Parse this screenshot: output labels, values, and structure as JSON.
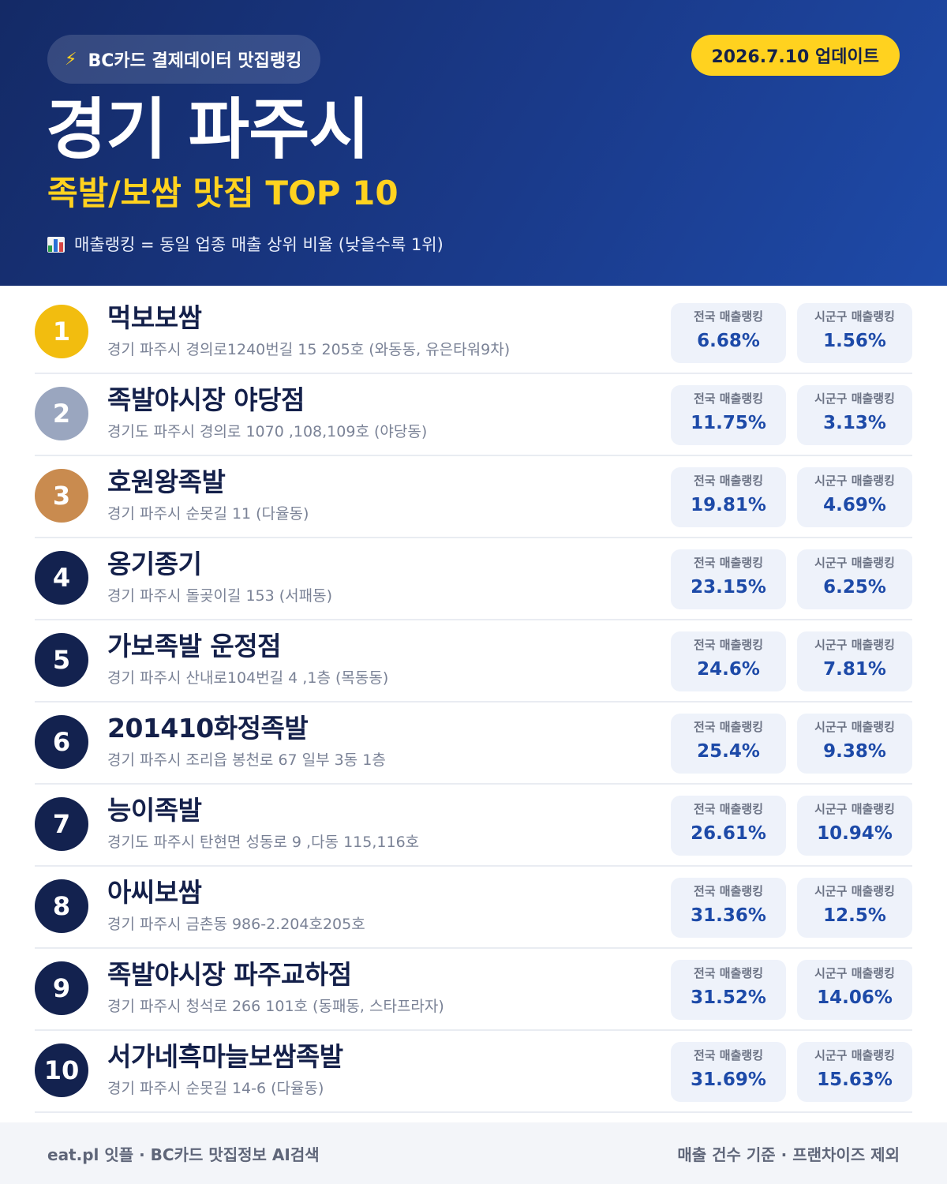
{
  "header": {
    "brand_icon": "lightning-bolt-icon",
    "brand": "BC카드 결제데이터 맛집랭킹",
    "update": "2026.7.10 업데이트",
    "region": "경기 파주시",
    "category": "족발/보쌈 맛집 TOP 10",
    "note_icon": "bar-chart-icon",
    "note": "매출랭킹 = 동일 업종 매출 상위 비율 (낮을수록 1위)"
  },
  "colors": {
    "header_bg": "#1a3a8a",
    "accent_yellow": "#ffd21f",
    "rank_gold": "#f2bd0f",
    "rank_silver": "#9aa6bf",
    "rank_bronze": "#c98b4f",
    "rank_default": "#13224f",
    "value_blue": "#1d4aa8"
  },
  "labels": {
    "national": "전국 매출랭킹",
    "local": "시군구 매출랭킹"
  },
  "restaurants": [
    {
      "rank": "1",
      "name": "먹보보쌈",
      "address": "경기 파주시 경의로1240번길 15 205호 (와동동, 유은타워9차)",
      "national": "6.68%",
      "local": "1.56%"
    },
    {
      "rank": "2",
      "name": "족발야시장 야당점",
      "address": "경기도 파주시 경의로 1070 ,108,109호 (야당동)",
      "national": "11.75%",
      "local": "3.13%"
    },
    {
      "rank": "3",
      "name": "호원왕족발",
      "address": "경기 파주시 순못길 11 (다율동)",
      "national": "19.81%",
      "local": "4.69%"
    },
    {
      "rank": "4",
      "name": "옹기종기",
      "address": "경기 파주시 돌곶이길 153 (서패동)",
      "national": "23.15%",
      "local": "6.25%"
    },
    {
      "rank": "5",
      "name": "가보족발 운정점",
      "address": "경기 파주시 산내로104번길 4 ,1층 (목동동)",
      "national": "24.6%",
      "local": "7.81%"
    },
    {
      "rank": "6",
      "name": "201410화정족발",
      "address": "경기 파주시 조리읍 봉천로 67 일부 3동 1층",
      "national": "25.4%",
      "local": "9.38%"
    },
    {
      "rank": "7",
      "name": "능이족발",
      "address": "경기도 파주시 탄현면 성동로 9 ,다동 115,116호",
      "national": "26.61%",
      "local": "10.94%"
    },
    {
      "rank": "8",
      "name": "아씨보쌈",
      "address": "경기 파주시 금촌동 986-2.204호205호",
      "national": "31.36%",
      "local": "12.5%"
    },
    {
      "rank": "9",
      "name": "족발야시장 파주교하점",
      "address": "경기 파주시 청석로 266 101호 (동패동, 스타프라자)",
      "national": "31.52%",
      "local": "14.06%"
    },
    {
      "rank": "10",
      "name": "서가네흑마늘보쌈족발",
      "address": "경기 파주시 순못길 14-6 (다율동)",
      "national": "31.69%",
      "local": "15.63%"
    }
  ],
  "footer": {
    "left": "eat.pl 잇플 · BC카드 맛집정보 AI검색",
    "right": "매출 건수 기준 · 프랜차이즈 제외"
  }
}
